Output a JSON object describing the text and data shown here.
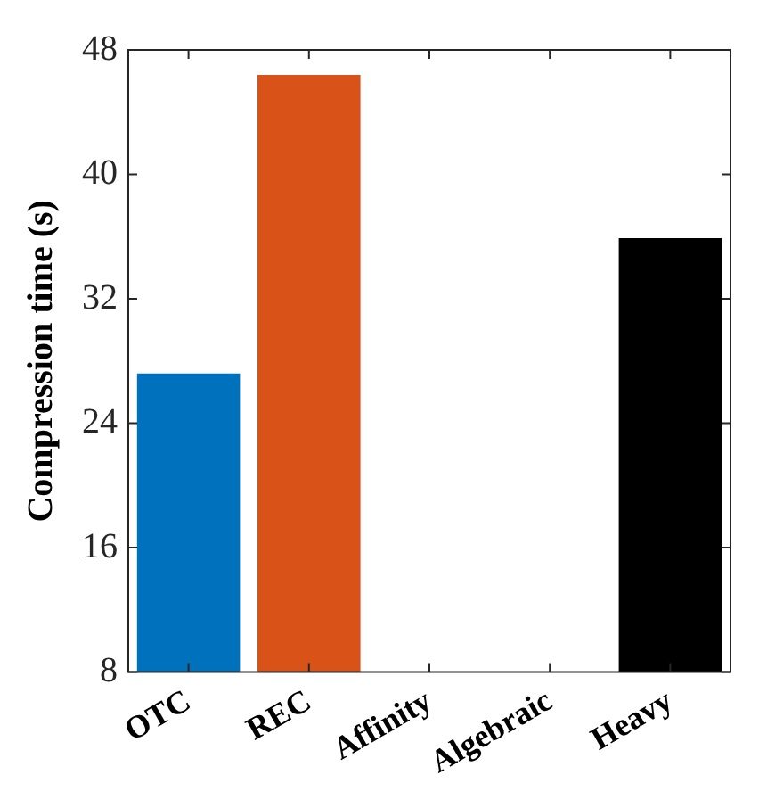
{
  "chart_data": {
    "type": "bar",
    "ylabel": "Compression time (s)",
    "categories": [
      "OTC",
      "REC",
      "Affinity",
      "Algebraic",
      "Heavy"
    ],
    "values": [
      27.2,
      46.4,
      null,
      null,
      35.9
    ],
    "colors": [
      "#0072bd",
      "#d95319",
      null,
      null,
      "#000000"
    ],
    "ylim": [
      8,
      48
    ],
    "yticks": [
      8,
      16,
      24,
      32,
      40,
      48
    ],
    "grid": false,
    "legend": false
  }
}
